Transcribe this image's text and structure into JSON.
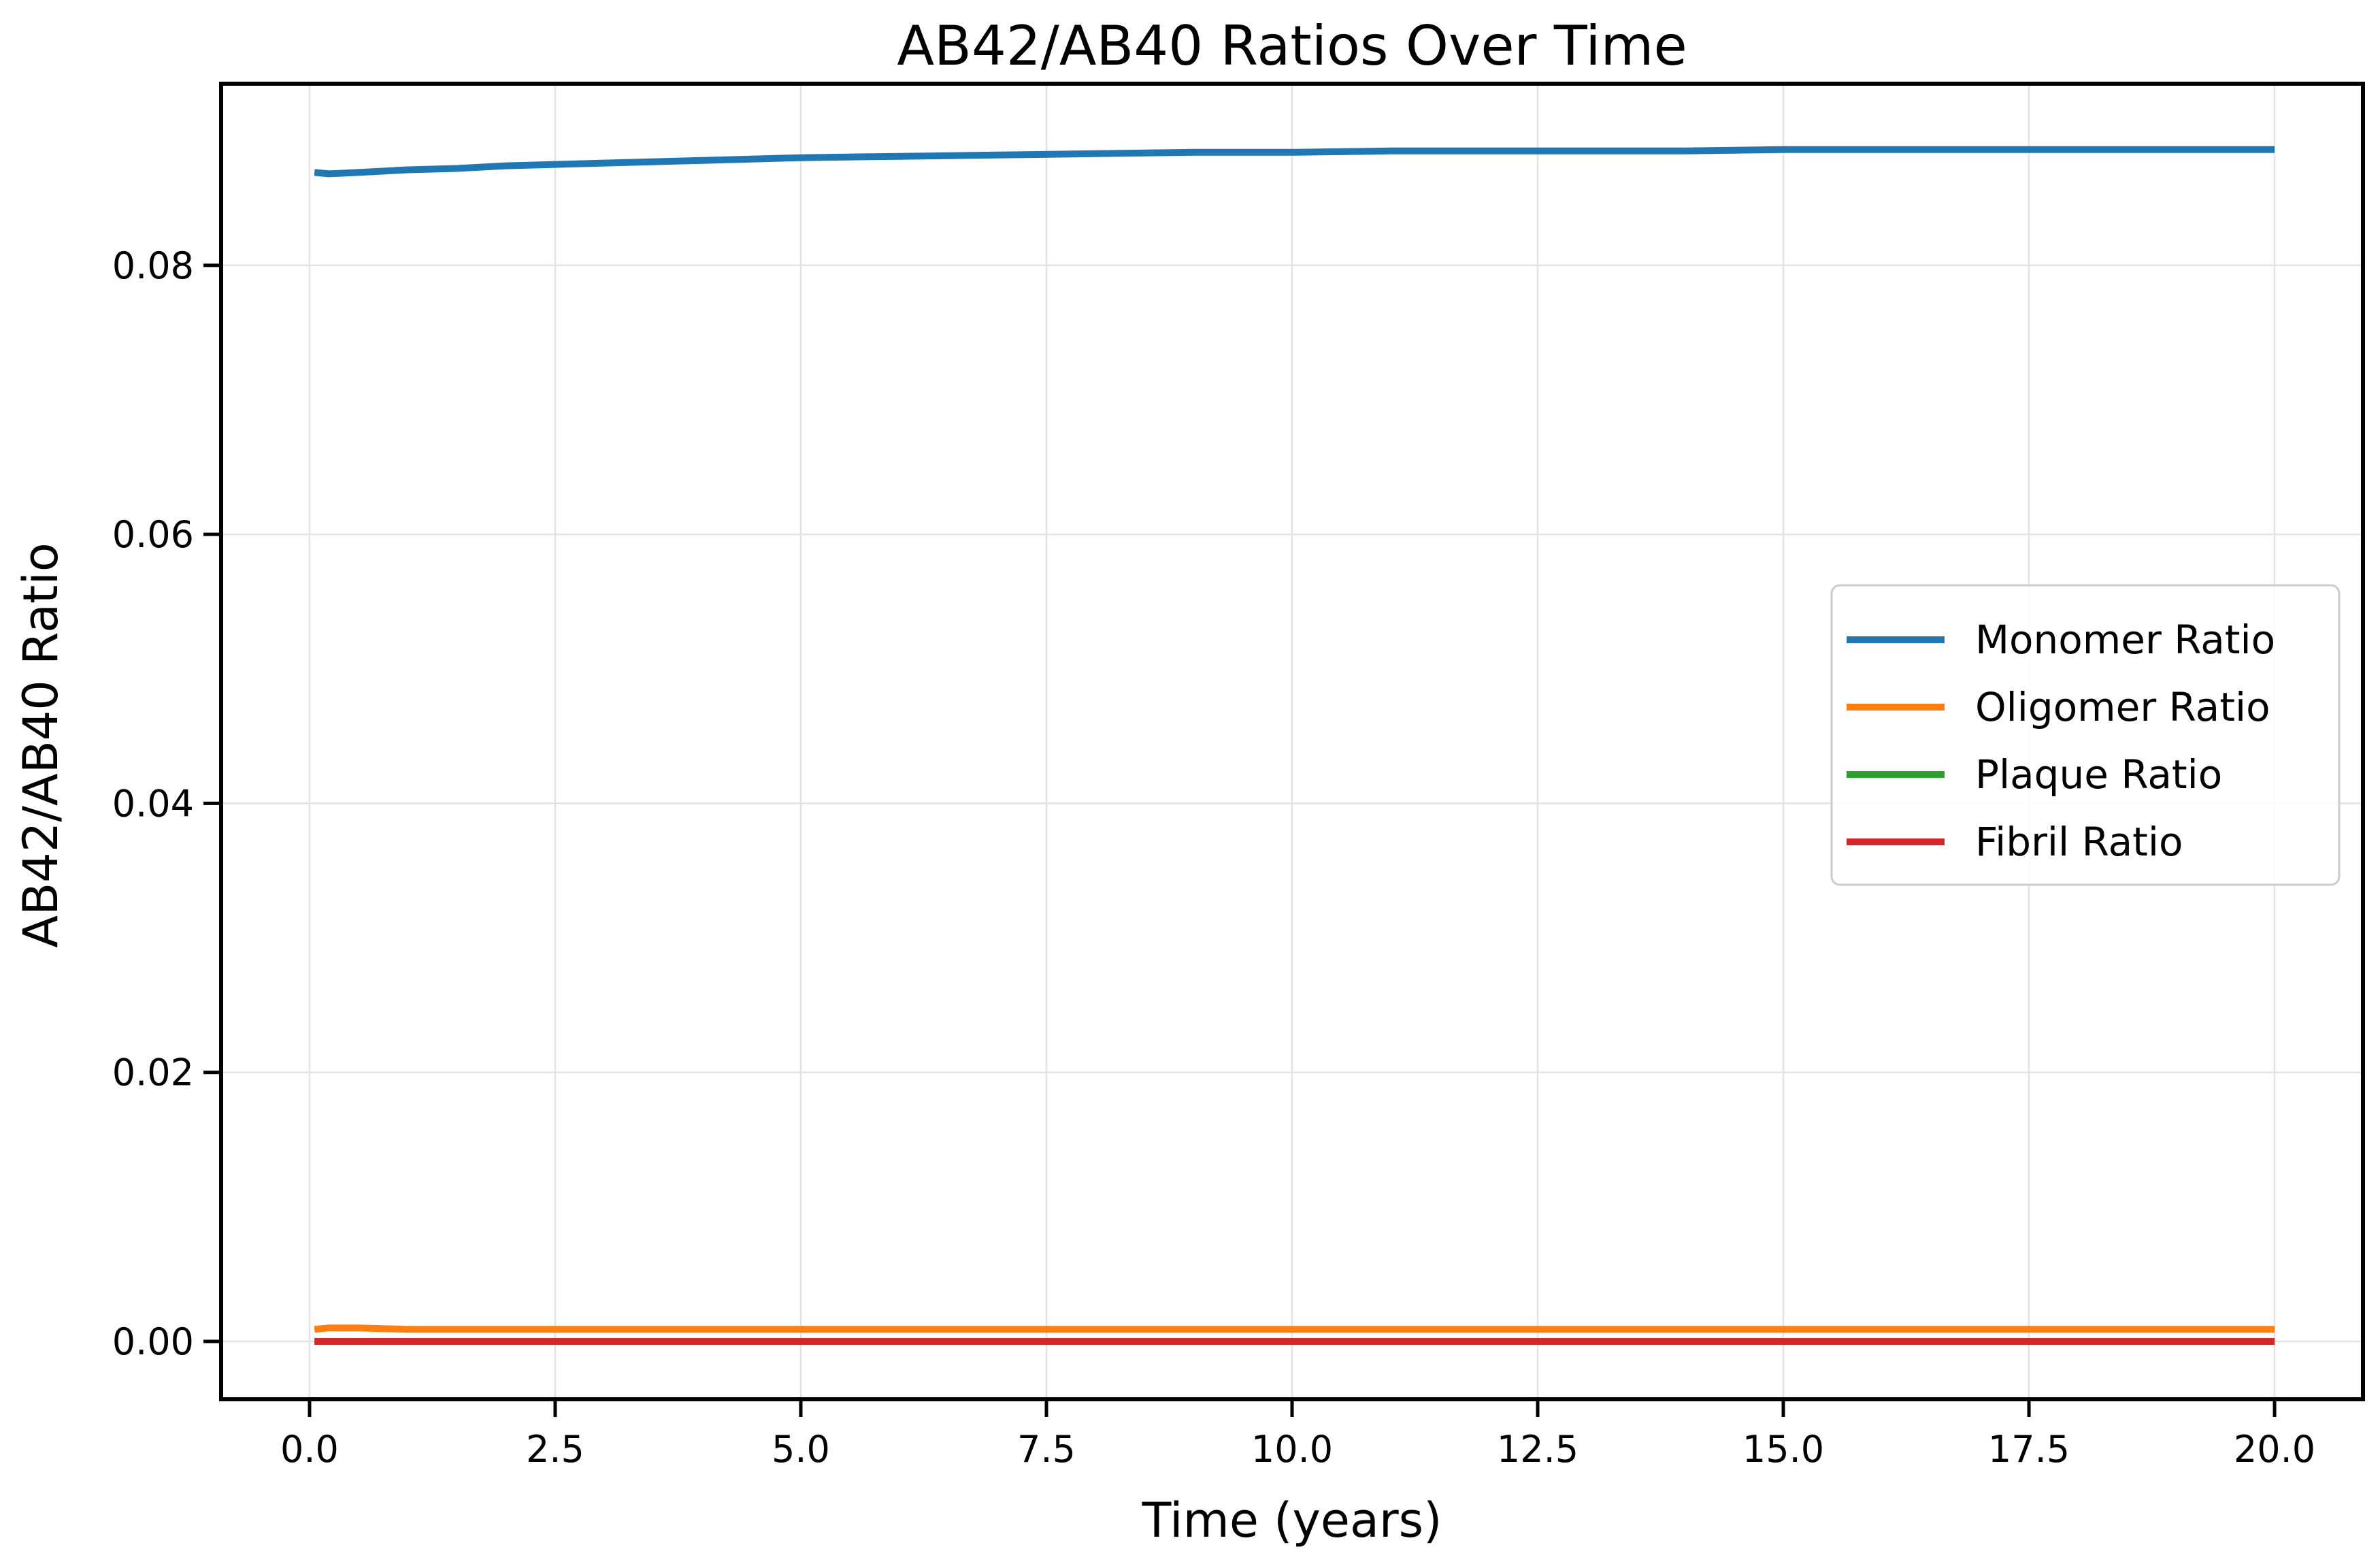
{
  "chart_data": {
    "type": "line",
    "title": "AB42/AB40 Ratios Over Time",
    "xlabel": "Time (years)",
    "ylabel": "AB42/AB40 Ratio",
    "xlim": [
      -0.9,
      20.9
    ],
    "ylim": [
      -0.0043,
      0.0935
    ],
    "x_ticks": [
      0.0,
      2.5,
      5.0,
      7.5,
      10.0,
      12.5,
      15.0,
      17.5,
      20.0
    ],
    "x_tick_labels": [
      "0.0",
      "2.5",
      "5.0",
      "7.5",
      "10.0",
      "12.5",
      "15.0",
      "17.5",
      "20.0"
    ],
    "y_ticks": [
      0.0,
      0.02,
      0.04,
      0.06,
      0.08
    ],
    "y_tick_labels": [
      "0.00",
      "0.02",
      "0.04",
      "0.06",
      "0.08"
    ],
    "grid": true,
    "legend_position": "center-right",
    "x": [
      0.05,
      0.2,
      0.5,
      1.0,
      1.5,
      2.0,
      2.5,
      3.0,
      4.0,
      5.0,
      6.0,
      7.0,
      8.0,
      9.0,
      10.0,
      11.0,
      12.0,
      13.0,
      14.0,
      15.0,
      16.0,
      17.0,
      18.0,
      19.0,
      20.0
    ],
    "series": [
      {
        "name": "Monomer Ratio",
        "color": "#1f77b4",
        "values": [
          0.0869,
          0.0868,
          0.0869,
          0.0871,
          0.0872,
          0.0874,
          0.0875,
          0.0876,
          0.0878,
          0.088,
          0.0881,
          0.0882,
          0.0883,
          0.0884,
          0.0884,
          0.0885,
          0.0885,
          0.0885,
          0.0885,
          0.0886,
          0.0886,
          0.0886,
          0.0886,
          0.0886,
          0.0886
        ]
      },
      {
        "name": "Oligomer Ratio",
        "color": "#ff7f0e",
        "values": [
          0.0009,
          0.001,
          0.001,
          0.0009,
          0.0009,
          0.0009,
          0.0009,
          0.0009,
          0.0009,
          0.0009,
          0.0009,
          0.0009,
          0.0009,
          0.0009,
          0.0009,
          0.0009,
          0.0009,
          0.0009,
          0.0009,
          0.0009,
          0.0009,
          0.0009,
          0.0009,
          0.0009,
          0.0009
        ]
      },
      {
        "name": "Plaque Ratio",
        "color": "#2ca02c",
        "values": [
          0.0,
          0.0,
          0.0,
          0.0,
          0.0,
          0.0,
          0.0,
          0.0,
          0.0,
          0.0,
          0.0,
          0.0,
          0.0,
          0.0,
          0.0,
          0.0,
          0.0,
          0.0,
          0.0,
          0.0,
          0.0,
          0.0,
          0.0,
          0.0,
          0.0
        ]
      },
      {
        "name": "Fibril Ratio",
        "color": "#d62728",
        "values": [
          0.0,
          0.0,
          0.0,
          0.0,
          0.0,
          0.0,
          0.0,
          0.0,
          0.0,
          0.0,
          0.0,
          0.0,
          0.0,
          0.0,
          0.0,
          0.0,
          0.0,
          0.0,
          0.0,
          0.0,
          0.0,
          0.0,
          0.0,
          0.0,
          0.0
        ]
      }
    ]
  }
}
